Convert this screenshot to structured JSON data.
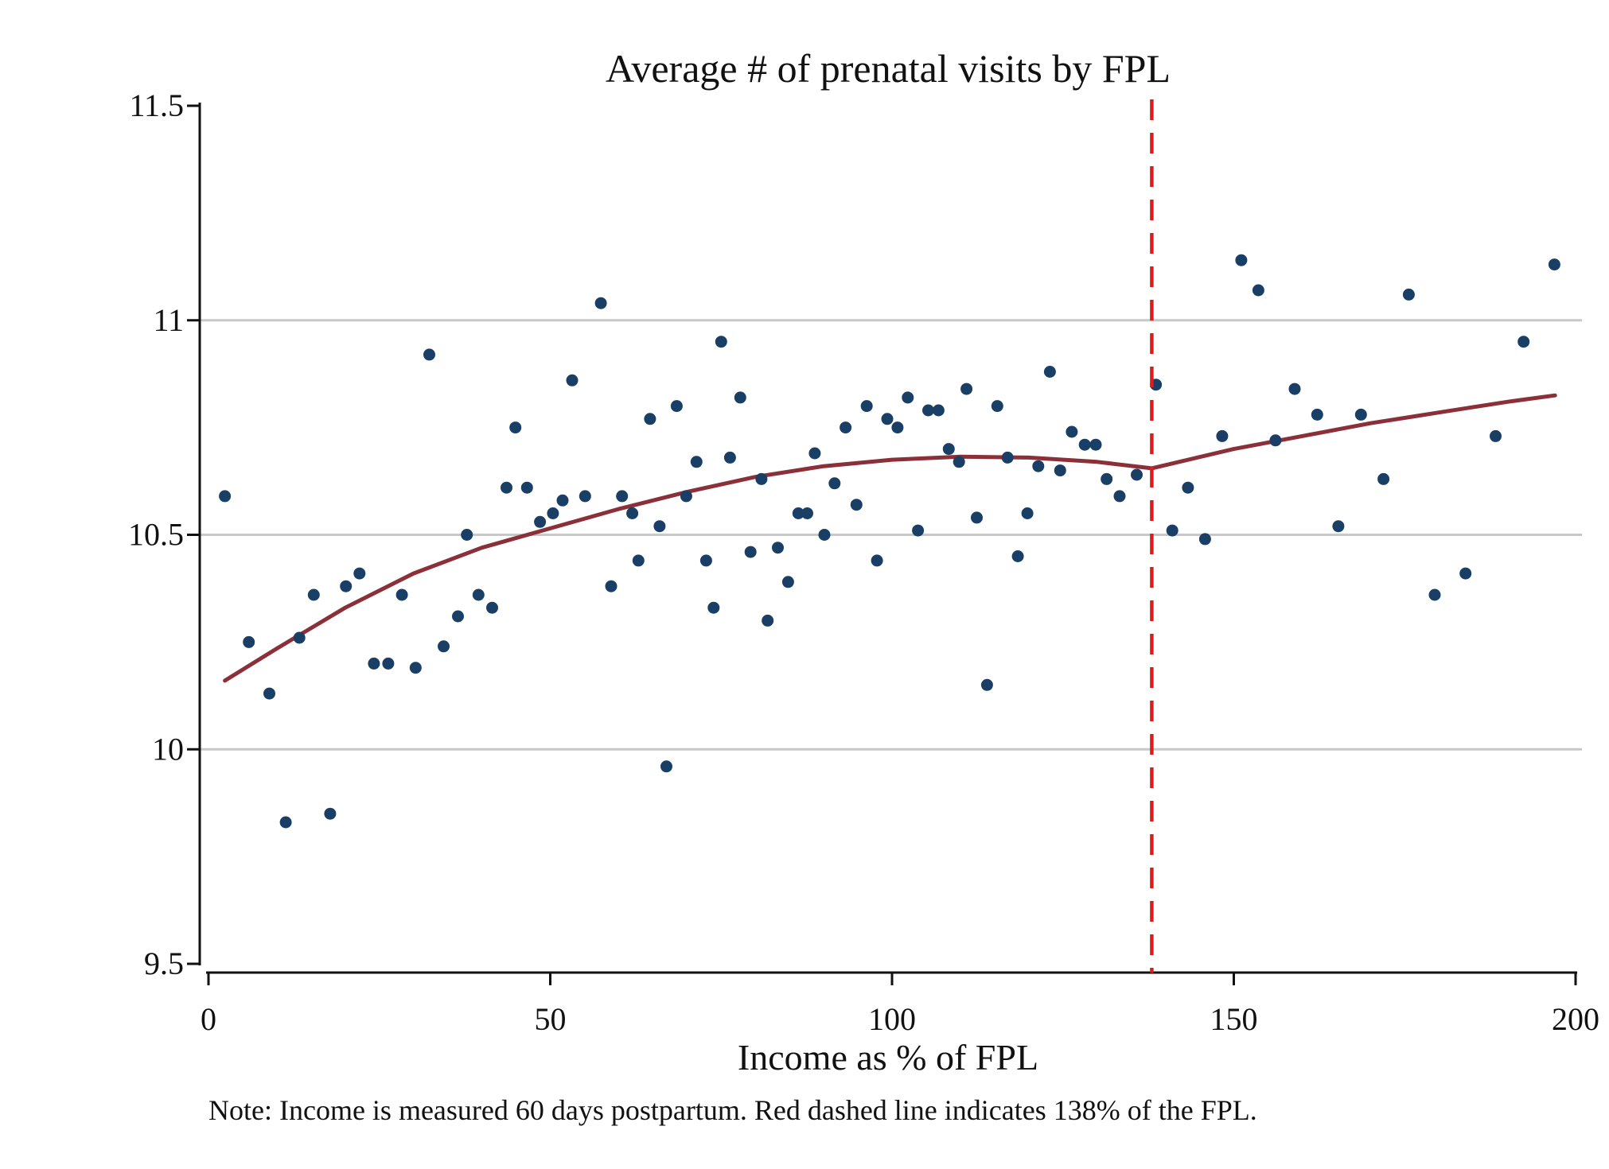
{
  "chart_data": {
    "type": "scatter",
    "title": "Average # of prenatal visits by FPL",
    "xlabel": "Income as % of FPL",
    "ylabel": "",
    "note": "Note: Income is measured 60 days postpartum. Red dashed line indicates 138% of the FPL.",
    "xlim": [
      0,
      200
    ],
    "ylim": [
      9.5,
      11.5
    ],
    "x_ticks": [
      0,
      50,
      100,
      150,
      200
    ],
    "y_ticks": [
      9.5,
      10,
      10.5,
      11,
      11.5
    ],
    "x_tick_labels": [
      "0",
      "50",
      "100",
      "150",
      "200"
    ],
    "y_tick_labels": [
      "9.5",
      "10",
      "10.5",
      "11",
      "11.5"
    ],
    "grid": "horizontal",
    "colors": {
      "points": "#1a3f66",
      "fit": "#8b3038",
      "cutoff": "#e01b1b",
      "grid": "#c8c8c8"
    },
    "cutoff_x": 138,
    "series": [
      {
        "type": "scatter",
        "points": [
          [
            2.4,
            10.59
          ],
          [
            5.9,
            10.25
          ],
          [
            8.9,
            10.13
          ],
          [
            11.3,
            9.83
          ],
          [
            13.3,
            10.26
          ],
          [
            15.4,
            10.36
          ],
          [
            17.8,
            9.85
          ],
          [
            20.1,
            10.38
          ],
          [
            22.1,
            10.41
          ],
          [
            24.2,
            10.2
          ],
          [
            26.3,
            10.2
          ],
          [
            28.3,
            10.36
          ],
          [
            30.3,
            10.19
          ],
          [
            32.3,
            10.92
          ],
          [
            34.4,
            10.24
          ],
          [
            36.5,
            10.31
          ],
          [
            37.8,
            10.5
          ],
          [
            39.5,
            10.36
          ],
          [
            41.5,
            10.33
          ],
          [
            43.6,
            10.61
          ],
          [
            44.9,
            10.75
          ],
          [
            46.6,
            10.61
          ],
          [
            48.5,
            10.53
          ],
          [
            50.4,
            10.55
          ],
          [
            51.8,
            10.58
          ],
          [
            53.2,
            10.86
          ],
          [
            55.1,
            10.59
          ],
          [
            57.4,
            11.04
          ],
          [
            58.9,
            10.38
          ],
          [
            60.5,
            10.59
          ],
          [
            62,
            10.55
          ],
          [
            62.9,
            10.44
          ],
          [
            64.6,
            10.77
          ],
          [
            66,
            10.52
          ],
          [
            67,
            9.96
          ],
          [
            68.5,
            10.8
          ],
          [
            69.9,
            10.59
          ],
          [
            71.4,
            10.67
          ],
          [
            72.8,
            10.44
          ],
          [
            73.9,
            10.33
          ],
          [
            75,
            10.95
          ],
          [
            76.3,
            10.68
          ],
          [
            77.8,
            10.82
          ],
          [
            79.3,
            10.46
          ],
          [
            80.9,
            10.63
          ],
          [
            81.8,
            10.3
          ],
          [
            83.3,
            10.47
          ],
          [
            84.8,
            10.39
          ],
          [
            86.3,
            10.55
          ],
          [
            87.6,
            10.55
          ],
          [
            88.7,
            10.69
          ],
          [
            90.1,
            10.5
          ],
          [
            91.6,
            10.62
          ],
          [
            93.2,
            10.75
          ],
          [
            94.8,
            10.57
          ],
          [
            96.3,
            10.8
          ],
          [
            97.8,
            10.44
          ],
          [
            99.3,
            10.77
          ],
          [
            100.8,
            10.75
          ],
          [
            102.3,
            10.82
          ],
          [
            103.8,
            10.51
          ],
          [
            105.3,
            10.79
          ],
          [
            106.8,
            10.79
          ],
          [
            108.3,
            10.7
          ],
          [
            109.8,
            10.67
          ],
          [
            110.9,
            10.84
          ],
          [
            112.4,
            10.54
          ],
          [
            113.9,
            10.15
          ],
          [
            115.4,
            10.8
          ],
          [
            116.9,
            10.68
          ],
          [
            118.4,
            10.45
          ],
          [
            119.8,
            10.55
          ],
          [
            121.4,
            10.66
          ],
          [
            123.1,
            10.88
          ],
          [
            124.6,
            10.65
          ],
          [
            126.3,
            10.74
          ],
          [
            128.2,
            10.71
          ],
          [
            129.8,
            10.71
          ],
          [
            131.4,
            10.63
          ],
          [
            133.3,
            10.59
          ],
          [
            135.8,
            10.64
          ],
          [
            138.6,
            10.85
          ],
          [
            141,
            10.51
          ],
          [
            143.3,
            10.61
          ],
          [
            145.8,
            10.49
          ],
          [
            148.3,
            10.73
          ],
          [
            151.1,
            11.14
          ],
          [
            153.6,
            11.07
          ],
          [
            156.1,
            10.72
          ],
          [
            158.9,
            10.84
          ],
          [
            162.2,
            10.78
          ],
          [
            165.3,
            10.52
          ],
          [
            168.6,
            10.78
          ],
          [
            171.9,
            10.63
          ],
          [
            175.6,
            11.06
          ],
          [
            179.4,
            10.36
          ],
          [
            183.9,
            10.41
          ],
          [
            188.3,
            10.73
          ],
          [
            192.4,
            10.95
          ],
          [
            196.9,
            11.13
          ]
        ]
      },
      {
        "type": "line",
        "points": [
          [
            2.4,
            10.16
          ],
          [
            10,
            10.235
          ],
          [
            20,
            10.33
          ],
          [
            30,
            10.41
          ],
          [
            40,
            10.47
          ],
          [
            50,
            10.515
          ],
          [
            60,
            10.56
          ],
          [
            70,
            10.6
          ],
          [
            80,
            10.635
          ],
          [
            90,
            10.66
          ],
          [
            100,
            10.675
          ],
          [
            110,
            10.682
          ],
          [
            120,
            10.68
          ],
          [
            130,
            10.67
          ],
          [
            138,
            10.655
          ],
          [
            150,
            10.7
          ],
          [
            160,
            10.73
          ],
          [
            170,
            10.76
          ],
          [
            180,
            10.785
          ],
          [
            190,
            10.81
          ],
          [
            197,
            10.825
          ]
        ]
      }
    ]
  }
}
